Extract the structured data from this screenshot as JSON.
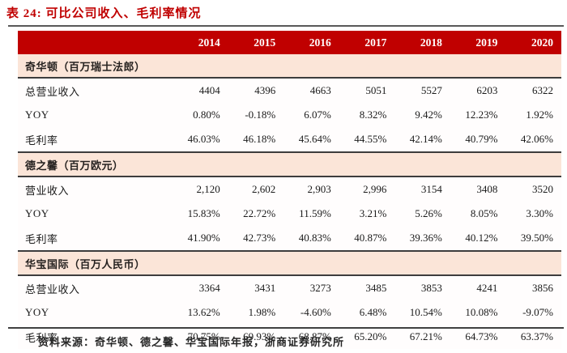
{
  "title": "表 24: 可比公司收入、毛利率情况",
  "colors": {
    "accent_red": "#c00000",
    "section_band_pink": "#fbe5d8",
    "rule_gray": "#595959",
    "rule_dark": "#404040",
    "text_dark": "#1a1a1a"
  },
  "table": {
    "year_headers": [
      "2014",
      "2015",
      "2016",
      "2017",
      "2018",
      "2019",
      "2020"
    ],
    "sections": [
      {
        "name": "奇华顿（百万瑞士法郎）",
        "rows": [
          {
            "label": "总营业收入",
            "values": [
              "4404",
              "4396",
              "4663",
              "5051",
              "5527",
              "6203",
              "6322"
            ]
          },
          {
            "label": "YOY",
            "values": [
              "0.80%",
              "-0.18%",
              "6.07%",
              "8.32%",
              "9.42%",
              "12.23%",
              "1.92%"
            ]
          },
          {
            "label": "毛利率",
            "values": [
              "46.03%",
              "46.18%",
              "45.64%",
              "44.55%",
              "42.14%",
              "40.79%",
              "42.06%"
            ]
          }
        ]
      },
      {
        "name": "德之馨（百万欧元）",
        "rows": [
          {
            "label": "营业收入",
            "values": [
              "2,120",
              "2,602",
              "2,903",
              "2,996",
              "3154",
              "3408",
              "3520"
            ]
          },
          {
            "label": "YOY",
            "values": [
              "15.83%",
              "22.72%",
              "11.59%",
              "3.21%",
              "5.26%",
              "8.05%",
              "3.30%"
            ]
          },
          {
            "label": "毛利率",
            "values": [
              "41.90%",
              "42.73%",
              "40.83%",
              "40.87%",
              "39.36%",
              "40.12%",
              "39.50%"
            ]
          }
        ]
      },
      {
        "name": "华宝国际（百万人民币）",
        "rows": [
          {
            "label": "总营业收入",
            "values": [
              "3364",
              "3431",
              "3273",
              "3485",
              "3853",
              "4241",
              "3856"
            ]
          },
          {
            "label": "YOY",
            "values": [
              "13.62%",
              "1.98%",
              "-4.60%",
              "6.48%",
              "10.54%",
              "10.08%",
              "-9.07%"
            ]
          },
          {
            "label": "毛利率",
            "values": [
              "70.75%",
              "69.93%",
              "68.87%",
              "65.20%",
              "67.21%",
              "64.73%",
              "63.37%"
            ]
          }
        ]
      }
    ]
  },
  "footer": {
    "source": "资料来源：奇华顿、德之馨、华宝国际年报，浙商证券研究所"
  }
}
